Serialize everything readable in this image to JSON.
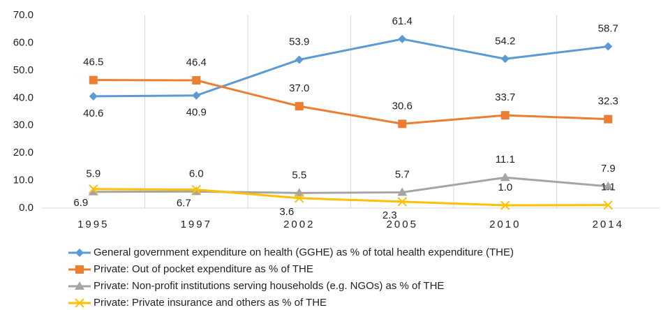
{
  "chart_data": {
    "type": "line",
    "categories": [
      "1995",
      "1997",
      "2002",
      "2005",
      "2010",
      "2014"
    ],
    "ylim": [
      0,
      70
    ],
    "yticks": [
      {
        "value": 0,
        "label": "0.0"
      },
      {
        "value": 10,
        "label": "10.0"
      },
      {
        "value": 20,
        "label": "20.0"
      },
      {
        "value": 30,
        "label": "30.0"
      },
      {
        "value": 40,
        "label": "40.0"
      },
      {
        "value": 50,
        "label": "50.0"
      },
      {
        "value": 60,
        "label": "60.0"
      },
      {
        "value": 70,
        "label": "70.0"
      }
    ],
    "grid": true,
    "legend": "bottom",
    "series": [
      {
        "name": "General government expenditure on health (GGHE) as % of total health expenditure (THE)",
        "color": "#5b9bd5",
        "marker": "diamond",
        "values": [
          40.6,
          40.9,
          53.9,
          61.4,
          54.2,
          58.7
        ],
        "value_labels": [
          "40.6",
          "40.9",
          "53.9",
          "61.4",
          "54.2",
          "58.7"
        ]
      },
      {
        "name": "Private: Out of pocket expenditure as % of THE",
        "color": "#ed7d31",
        "marker": "square",
        "values": [
          46.5,
          46.4,
          37.0,
          30.6,
          33.7,
          32.3
        ],
        "value_labels": [
          "46.5",
          "46.4",
          "37.0",
          "30.6",
          "33.7",
          "32.3"
        ]
      },
      {
        "name": "Private: Non-profit institutions serving households (e.g. NGOs) as % of THE",
        "color": "#a5a5a5",
        "marker": "triangle",
        "values": [
          5.9,
          6.0,
          5.5,
          5.7,
          11.1,
          7.9
        ],
        "value_labels": [
          "5.9",
          "6.0",
          "5.5",
          "5.7",
          "11.1",
          "7.9"
        ]
      },
      {
        "name": "Private: Private insurance and others as % of THE",
        "color": "#ffc000",
        "marker": "x",
        "values": [
          6.9,
          6.7,
          3.6,
          2.3,
          1.0,
          1.1
        ],
        "value_labels": [
          "6.9",
          "6.7",
          "3.6",
          "2.3",
          "1.0",
          "1.1"
        ]
      }
    ]
  }
}
